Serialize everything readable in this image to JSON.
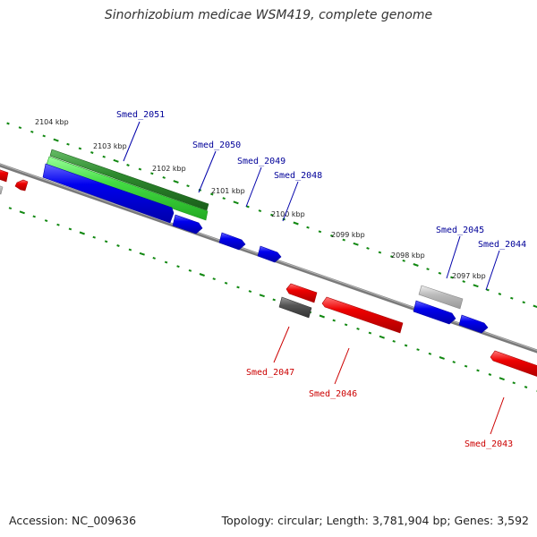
{
  "title": "Sinorhizobium medicae WSM419, complete genome",
  "footer": {
    "accession": "Accession: NC_009636",
    "summary": "Topology: circular; Length: 3,781,904 bp; Genes: 3,592"
  },
  "colors": {
    "forward_cds": "#0000ee",
    "reverse_cds": "#ee0000",
    "gene": "#2e8b2e",
    "gene_light": "#44dd44",
    "pseudo_dark": "#555555",
    "pseudo_light": "#bbbbbb",
    "backbone": "#888888",
    "ticks": "#118811",
    "forward_label": "#000099",
    "reverse_label": "#cc0000"
  },
  "scale_labels": [
    "2104 kbp",
    "2103 kbp",
    "2102 kbp",
    "2101 kbp",
    "2100 kbp",
    "2099 kbp",
    "2098 kbp",
    "2097 kbp"
  ],
  "features": {
    "forward": [
      "Smed_2051",
      "Smed_2050",
      "Smed_2049",
      "Smed_2048",
      "Smed_2045",
      "Smed_2044"
    ],
    "reverse": [
      "Smed_2047",
      "Smed_2046",
      "Smed_2043"
    ]
  }
}
